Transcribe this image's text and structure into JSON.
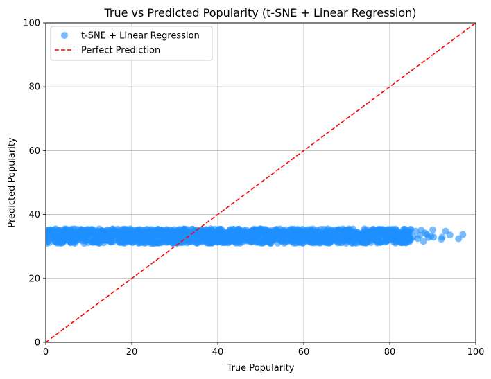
{
  "chart_data": {
    "type": "scatter",
    "title": "True vs Predicted Popularity (t-SNE + Linear Regression)",
    "xlabel": "True Popularity",
    "ylabel": "Predicted Popularity",
    "xlim": [
      0,
      100
    ],
    "ylim": [
      0,
      100
    ],
    "xticks": [
      "0",
      "20",
      "40",
      "60",
      "80",
      "100"
    ],
    "yticks": [
      "0",
      "20",
      "40",
      "60",
      "80",
      "100"
    ],
    "grid": true,
    "legend_position": "top-left",
    "series": [
      {
        "name": "t-SNE + Linear Regression",
        "kind": "scatter",
        "color": "#1e90ff",
        "dense_band": {
          "x_range": [
            0,
            85
          ],
          "y_range": [
            31,
            35.5
          ]
        },
        "points": [
          [
            85.5,
            33.0
          ],
          [
            86.0,
            34.8
          ],
          [
            86.5,
            32.5
          ],
          [
            87.0,
            33.5
          ],
          [
            87.3,
            35.1
          ],
          [
            87.8,
            31.6
          ],
          [
            88.2,
            34.2
          ],
          [
            88.6,
            33.8
          ],
          [
            89.0,
            32.8
          ],
          [
            89.6,
            33.2
          ],
          [
            90.0,
            35.2
          ],
          [
            90.2,
            32.9
          ],
          [
            92.0,
            32.3
          ],
          [
            92.2,
            32.9
          ],
          [
            93.0,
            34.8
          ],
          [
            94.0,
            33.6
          ],
          [
            96.0,
            32.4
          ],
          [
            97.0,
            33.7
          ]
        ]
      },
      {
        "name": "Perfect Prediction",
        "kind": "line",
        "style": "dashed",
        "color": "#ff0000",
        "x": [
          0,
          100
        ],
        "y": [
          0,
          100
        ]
      }
    ]
  }
}
